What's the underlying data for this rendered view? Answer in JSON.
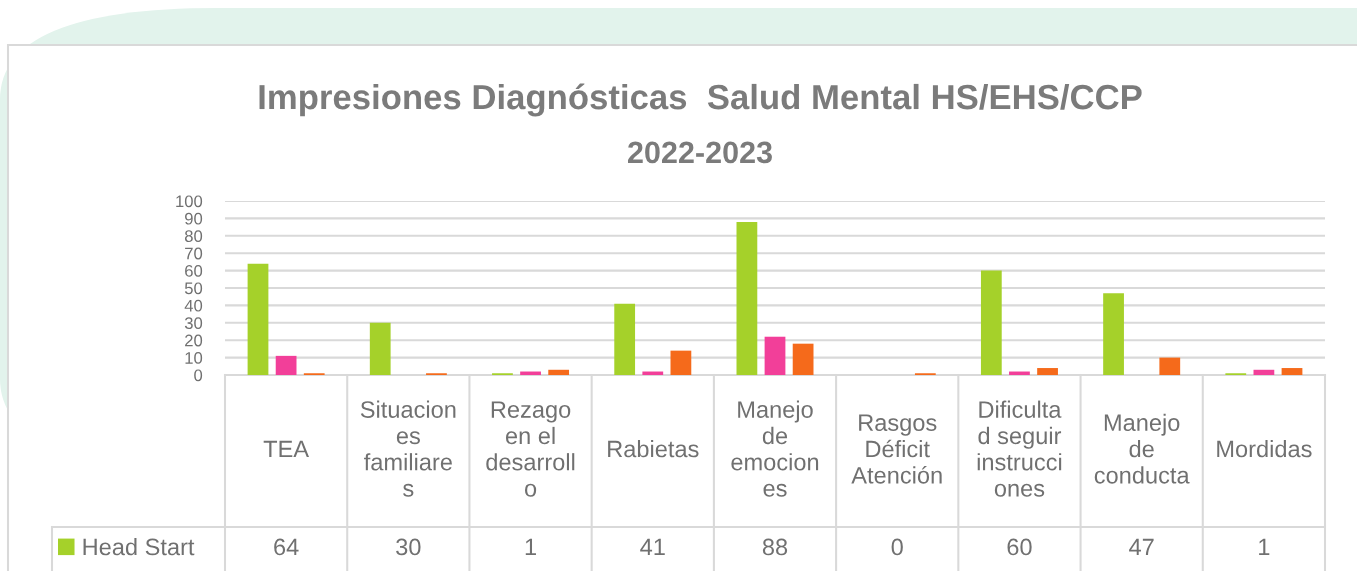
{
  "chart_data": {
    "type": "bar",
    "title": "Impresiones Diagnósticas  Salud Mental HS/EHS/CCP",
    "subtitle": "2022-2023",
    "categories": [
      "TEA",
      "Situacion\nes\nfamiliare\ns",
      "Rezago\nen el\ndesarroll\no",
      "Rabietas",
      "Manejo\nde\nemocion\nes",
      "Rasgos\nDéficit\nAtención",
      "Dificulta\nd seguir\ninstrucci\nones",
      "Manejo\nde\nconducta",
      "Mordidas"
    ],
    "series": [
      {
        "name": "Head Start",
        "color": "#a5d12a",
        "values": [
          64,
          30,
          1,
          41,
          88,
          0,
          60,
          47,
          1
        ],
        "value_labels": [
          "64",
          "30",
          "1",
          "41",
          "88",
          "0",
          "60",
          "47",
          "1"
        ]
      },
      {
        "color": "#f23f99",
        "values": [
          11,
          0,
          2,
          2,
          22,
          0,
          2,
          0,
          3
        ]
      },
      {
        "color": "#f56a1b",
        "values": [
          1,
          1,
          3,
          14,
          18,
          1,
          4,
          10,
          4
        ]
      }
    ],
    "ylim": [
      0,
      100
    ],
    "yticks": [
      0,
      10,
      20,
      30,
      40,
      50,
      60,
      70,
      80,
      90,
      100
    ],
    "grid": "y",
    "legend": "bottom left"
  }
}
